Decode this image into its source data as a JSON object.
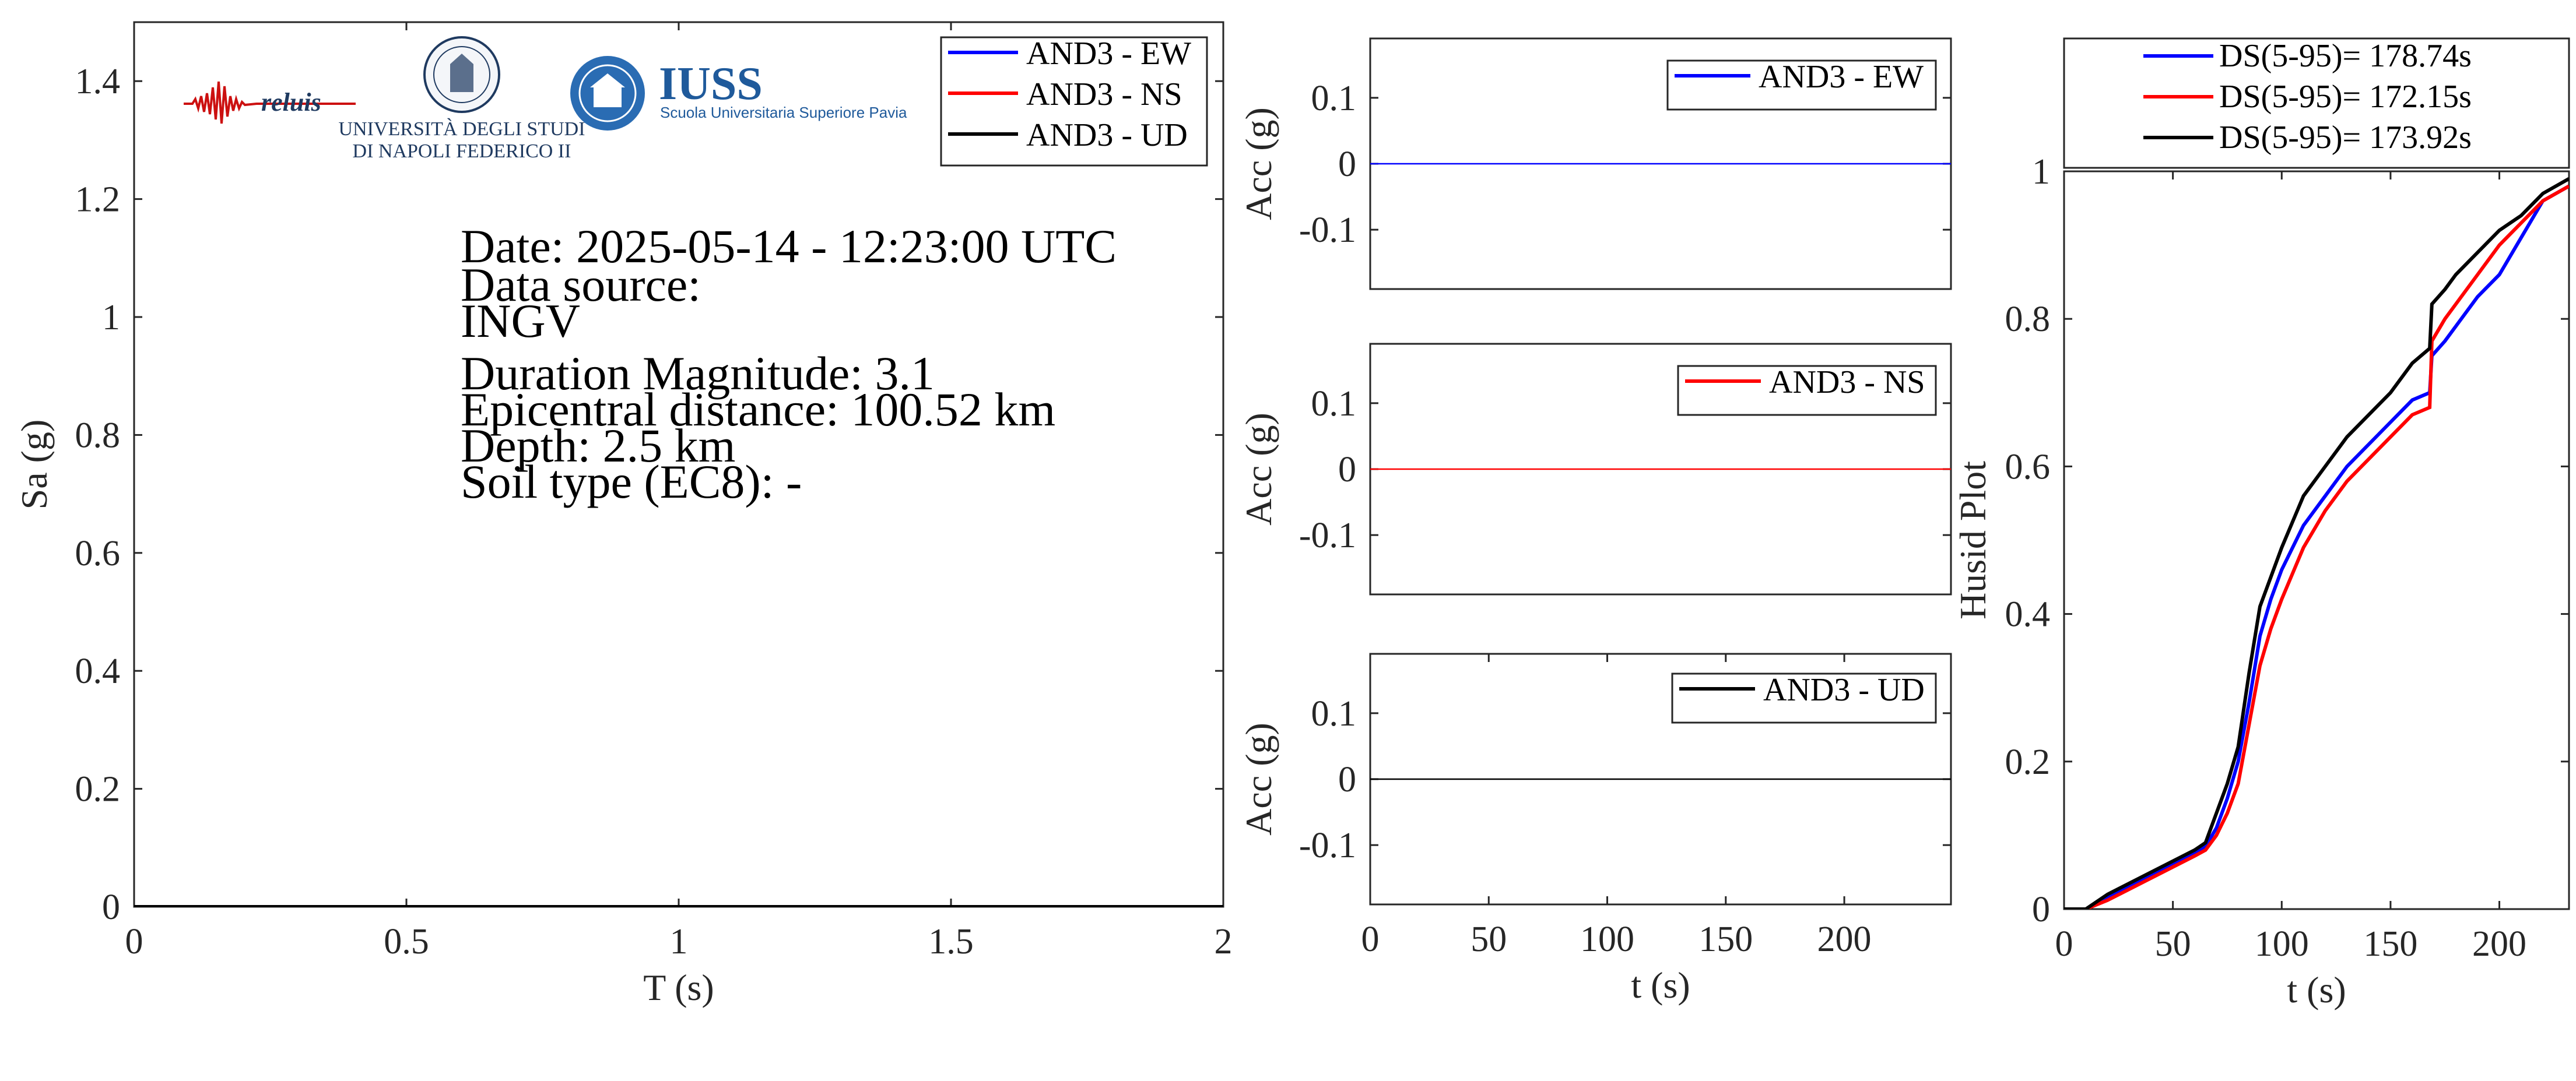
{
  "logos": {
    "reluis_text": "reluis",
    "unina_line1": "UNIVERSITÀ DEGLI STUDI",
    "unina_line2": "DI NAPOLI FEDERICO II",
    "iuss_title": "IUSS",
    "iuss_subtitle": "Scuola Universitaria Superiore Pavia"
  },
  "info": {
    "date": "Date: 2025-05-14 - 12:23:00 UTC",
    "source_label": "Data source:",
    "source_value": "INGV",
    "magnitude": "Duration Magnitude: 3.1",
    "distance": "Epicentral distance: 100.52 km",
    "depth": "Depth: 2.5 km",
    "soil": "Soil type (EC8): -"
  },
  "colors": {
    "ew": "#0000ff",
    "ns": "#ff0000",
    "ud": "#000000"
  },
  "chart_data": [
    {
      "type": "line",
      "id": "spectrum",
      "xlabel": "T (s)",
      "ylabel": "Sa (g)",
      "xlim": [
        0,
        2
      ],
      "ylim": [
        0,
        1.5
      ],
      "xticks": [
        0,
        0.5,
        1,
        1.5,
        2
      ],
      "xtick_labels": [
        "0",
        "0.5",
        "1",
        "1.5",
        "2"
      ],
      "yticks": [
        0,
        0.2,
        0.4,
        0.6,
        0.8,
        1,
        1.2,
        1.4
      ],
      "ytick_labels": [
        "0",
        "0.2",
        "0.4",
        "0.6",
        "0.8",
        "1",
        "1.2",
        "1.4"
      ],
      "legend": "top-right",
      "series": [
        {
          "name": "AND3 - EW",
          "color": "#0000ff",
          "x": [
            0,
            2
          ],
          "y": [
            0,
            0
          ]
        },
        {
          "name": "AND3 - NS",
          "color": "#ff0000",
          "x": [
            0,
            2
          ],
          "y": [
            0,
            0
          ]
        },
        {
          "name": "AND3 - UD",
          "color": "#000000",
          "x": [
            0,
            2
          ],
          "y": [
            0,
            0
          ]
        }
      ]
    },
    {
      "type": "line",
      "id": "acc_ew",
      "xlabel": "",
      "ylabel": "Acc (g)",
      "xlim": [
        0,
        245
      ],
      "ylim": [
        -0.19,
        0.19
      ],
      "yticks": [
        -0.1,
        0,
        0.1
      ],
      "ytick_labels": [
        "-0.1",
        "0",
        "0.1"
      ],
      "legend": "top-right",
      "series": [
        {
          "name": "AND3 - EW",
          "color": "#0000ff",
          "x": [
            0,
            245
          ],
          "y": [
            0,
            0
          ]
        }
      ]
    },
    {
      "type": "line",
      "id": "acc_ns",
      "xlabel": "",
      "ylabel": "Acc (g)",
      "xlim": [
        0,
        245
      ],
      "ylim": [
        -0.19,
        0.19
      ],
      "yticks": [
        -0.1,
        0,
        0.1
      ],
      "ytick_labels": [
        "-0.1",
        "0",
        "0.1"
      ],
      "legend": "top-right",
      "series": [
        {
          "name": "AND3 - NS",
          "color": "#ff0000",
          "x": [
            0,
            245
          ],
          "y": [
            0,
            0
          ]
        }
      ]
    },
    {
      "type": "line",
      "id": "acc_ud",
      "xlabel": "t (s)",
      "ylabel": "Acc (g)",
      "xlim": [
        0,
        245
      ],
      "ylim": [
        -0.19,
        0.19
      ],
      "xticks": [
        0,
        50,
        100,
        150,
        200
      ],
      "xtick_labels": [
        "0",
        "50",
        "100",
        "150",
        "200"
      ],
      "yticks": [
        -0.1,
        0,
        0.1
      ],
      "ytick_labels": [
        "-0.1",
        "0",
        "0.1"
      ],
      "legend": "top-right",
      "series": [
        {
          "name": "AND3 - UD",
          "color": "#000000",
          "x": [
            0,
            245
          ],
          "y": [
            0,
            0
          ]
        }
      ]
    },
    {
      "type": "line",
      "id": "husid",
      "xlabel": "t (s)",
      "ylabel": "Husid Plot",
      "xlim": [
        0,
        232
      ],
      "ylim": [
        0,
        1
      ],
      "xticks": [
        0,
        50,
        100,
        150,
        200
      ],
      "xtick_labels": [
        "0",
        "50",
        "100",
        "150",
        "200"
      ],
      "yticks": [
        0,
        0.2,
        0.4,
        0.6,
        0.8,
        1
      ],
      "ytick_labels": [
        "0",
        "0.2",
        "0.4",
        "0.6",
        "0.8",
        "1"
      ],
      "legend": "above",
      "series": [
        {
          "name": "DS(5-95)= 178.74s",
          "color": "#0000ff",
          "x": [
            0,
            10,
            20,
            30,
            40,
            50,
            60,
            65,
            70,
            75,
            80,
            85,
            90,
            95,
            100,
            110,
            120,
            130,
            140,
            150,
            160,
            168,
            169,
            175,
            180,
            190,
            200,
            210,
            220,
            232
          ],
          "y": [
            0,
            0,
            0.015,
            0.03,
            0.045,
            0.06,
            0.075,
            0.085,
            0.11,
            0.15,
            0.2,
            0.28,
            0.37,
            0.42,
            0.46,
            0.52,
            0.56,
            0.6,
            0.63,
            0.66,
            0.69,
            0.7,
            0.75,
            0.77,
            0.79,
            0.83,
            0.86,
            0.91,
            0.96,
            0.98
          ]
        },
        {
          "name": "DS(5-95)= 172.15s",
          "color": "#ff0000",
          "x": [
            0,
            10,
            20,
            30,
            40,
            50,
            60,
            65,
            70,
            75,
            80,
            85,
            90,
            95,
            100,
            110,
            120,
            130,
            140,
            150,
            160,
            168,
            169,
            175,
            180,
            190,
            200,
            210,
            220,
            232
          ],
          "y": [
            0,
            0,
            0.012,
            0.027,
            0.042,
            0.057,
            0.072,
            0.08,
            0.1,
            0.13,
            0.17,
            0.25,
            0.33,
            0.38,
            0.42,
            0.49,
            0.54,
            0.58,
            0.61,
            0.64,
            0.67,
            0.68,
            0.77,
            0.8,
            0.82,
            0.86,
            0.9,
            0.93,
            0.96,
            0.98
          ]
        },
        {
          "name": "DS(5-95)= 173.92s",
          "color": "#000000",
          "x": [
            0,
            10,
            20,
            30,
            40,
            50,
            60,
            65,
            70,
            75,
            80,
            85,
            90,
            95,
            100,
            110,
            120,
            130,
            140,
            150,
            160,
            168,
            169,
            175,
            180,
            190,
            200,
            210,
            220,
            232
          ],
          "y": [
            0,
            0,
            0.02,
            0.035,
            0.05,
            0.065,
            0.08,
            0.09,
            0.13,
            0.17,
            0.22,
            0.32,
            0.41,
            0.45,
            0.49,
            0.56,
            0.6,
            0.64,
            0.67,
            0.7,
            0.74,
            0.76,
            0.82,
            0.84,
            0.86,
            0.89,
            0.92,
            0.94,
            0.97,
            0.99
          ]
        }
      ]
    }
  ]
}
